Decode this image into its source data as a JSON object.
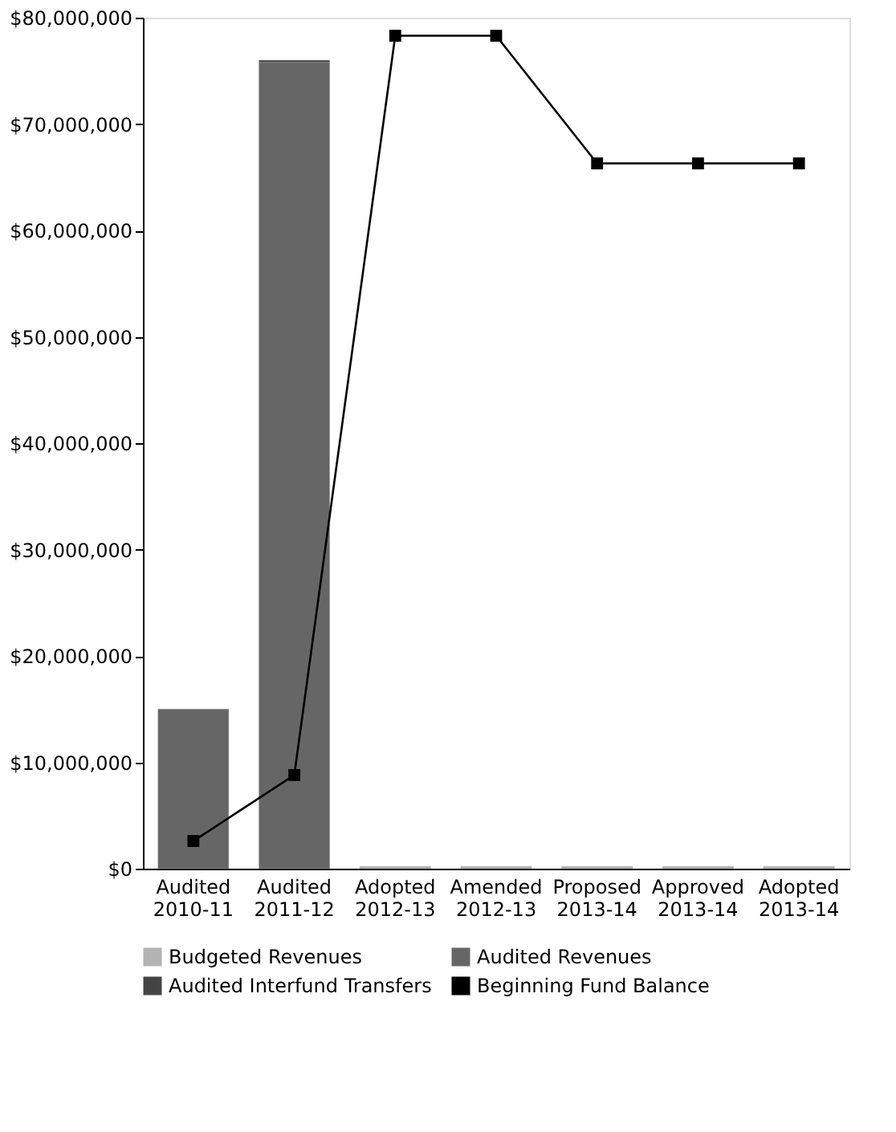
{
  "chart_data": {
    "type": "bar",
    "stacked": true,
    "categories": [
      "Audited 2010-11",
      "Audited 2011-12",
      "Adopted 2012-13",
      "Amended 2012-13",
      "Proposed 2013-14",
      "Approved 2013-14",
      "Adopted 2013-14"
    ],
    "series": [
      {
        "name": "Budgeted Revenues",
        "color": "#b3b3b3",
        "values": [
          null,
          null,
          200000,
          200000,
          200000,
          200000,
          200000
        ]
      },
      {
        "name": "Audited Revenues",
        "color": "#666666",
        "values": [
          15000000,
          75800000,
          null,
          null,
          null,
          null,
          null
        ]
      },
      {
        "name": "Audited Interfund Transfers",
        "color": "#444444",
        "values": [
          null,
          200000,
          null,
          null,
          null,
          null,
          null
        ]
      },
      {
        "name": "Beginning Fund Balance",
        "type": "line",
        "marker": "square",
        "color": "#000000",
        "values": [
          2600000,
          8800000,
          78300000,
          78300000,
          66300000,
          66300000,
          66300000
        ]
      }
    ],
    "ylim": [
      0,
      80000000
    ],
    "yticks": [
      {
        "value": 0,
        "label": "$0"
      },
      {
        "value": 10000000,
        "label": "$10,000,000"
      },
      {
        "value": 20000000,
        "label": "$20,000,000"
      },
      {
        "value": 30000000,
        "label": "$30,000,000"
      },
      {
        "value": 40000000,
        "label": "$40,000,000"
      },
      {
        "value": 50000000,
        "label": "$50,000,000"
      },
      {
        "value": 60000000,
        "label": "$60,000,000"
      },
      {
        "value": 70000000,
        "label": "$70,000,000"
      },
      {
        "value": 80000000,
        "label": "$80,000,000"
      }
    ],
    "grid": false,
    "legend": "bottom"
  }
}
